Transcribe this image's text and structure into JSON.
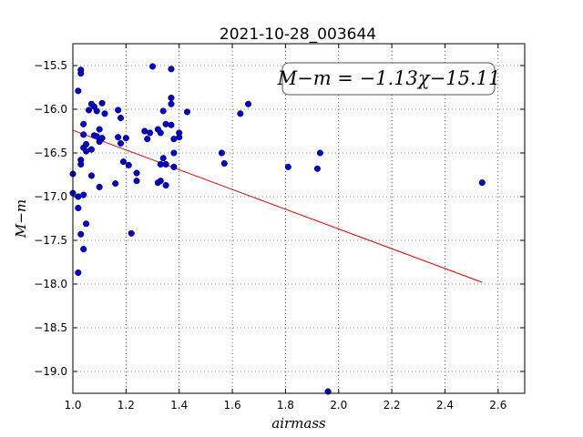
{
  "chart_data": {
    "type": "scatter",
    "title": "2021-10-28_003644",
    "xlabel": "airmass",
    "ylabel": "M−m",
    "xlim": [
      1.0,
      2.7
    ],
    "ylim": [
      -19.25,
      -15.25
    ],
    "y_inverted": true,
    "grid": true,
    "x_ticks": [
      "1.0",
      "1.2",
      "1.4",
      "1.6",
      "1.8",
      "2.0",
      "2.2",
      "2.4",
      "2.6"
    ],
    "y_ticks": [
      "−15.5",
      "−16.0",
      "−16.5",
      "−17.0",
      "−17.5",
      "−18.0",
      "−18.5",
      "−19.0"
    ],
    "annotation": "M−m = −1.13χ−15.11",
    "point_color": "#0000cc",
    "fit_color": "#dd0000",
    "fit_line": {
      "slope": -1.13,
      "intercept": -15.11,
      "x_range": [
        1.0,
        2.54
      ]
    },
    "points": [
      [
        1.0,
        -16.74
      ],
      [
        1.0,
        -16.96
      ],
      [
        1.02,
        -17.0
      ],
      [
        1.02,
        -15.79
      ],
      [
        1.02,
        -17.13
      ],
      [
        1.02,
        -17.87
      ],
      [
        1.03,
        -15.59
      ],
      [
        1.03,
        -15.55
      ],
      [
        1.03,
        -16.58
      ],
      [
        1.03,
        -16.63
      ],
      [
        1.03,
        -17.43
      ],
      [
        1.04,
        -16.29
      ],
      [
        1.04,
        -16.17
      ],
      [
        1.04,
        -16.44
      ],
      [
        1.04,
        -17.6
      ],
      [
        1.04,
        -16.98
      ],
      [
        1.05,
        -17.31
      ],
      [
        1.05,
        -16.4
      ],
      [
        1.05,
        -16.48
      ],
      [
        1.06,
        -16.01
      ],
      [
        1.07,
        -15.94
      ],
      [
        1.07,
        -16.46
      ],
      [
        1.07,
        -16.76
      ],
      [
        1.08,
        -16.3
      ],
      [
        1.08,
        -15.97
      ],
      [
        1.09,
        -16.02
      ],
      [
        1.09,
        -16.31
      ],
      [
        1.1,
        -16.89
      ],
      [
        1.1,
        -16.23
      ],
      [
        1.1,
        -16.37
      ],
      [
        1.11,
        -15.93
      ],
      [
        1.11,
        -16.33
      ],
      [
        1.12,
        -16.05
      ],
      [
        1.16,
        -16.85
      ],
      [
        1.17,
        -16.01
      ],
      [
        1.17,
        -16.32
      ],
      [
        1.18,
        -16.39
      ],
      [
        1.18,
        -16.1
      ],
      [
        1.19,
        -16.6
      ],
      [
        1.2,
        -16.33
      ],
      [
        1.21,
        -16.64
      ],
      [
        1.22,
        -17.42
      ],
      [
        1.24,
        -16.73
      ],
      [
        1.24,
        -16.82
      ],
      [
        1.27,
        -16.25
      ],
      [
        1.28,
        -16.34
      ],
      [
        1.29,
        -16.27
      ],
      [
        1.3,
        -15.51
      ],
      [
        1.32,
        -16.84
      ],
      [
        1.32,
        -16.23
      ],
      [
        1.33,
        -16.27
      ],
      [
        1.33,
        -16.82
      ],
      [
        1.33,
        -16.63
      ],
      [
        1.34,
        -16.02
      ],
      [
        1.34,
        -16.56
      ],
      [
        1.35,
        -16.17
      ],
      [
        1.35,
        -16.87
      ],
      [
        1.35,
        -16.63
      ],
      [
        1.37,
        -15.54
      ],
      [
        1.37,
        -15.87
      ],
      [
        1.37,
        -15.94
      ],
      [
        1.37,
        -16.18
      ],
      [
        1.38,
        -16.5
      ],
      [
        1.38,
        -16.66
      ],
      [
        1.38,
        -16.34
      ],
      [
        1.4,
        -16.32
      ],
      [
        1.4,
        -16.27
      ],
      [
        1.43,
        -16.03
      ],
      [
        1.56,
        -16.5
      ],
      [
        1.57,
        -16.62
      ],
      [
        1.63,
        -16.05
      ],
      [
        1.66,
        -15.94
      ],
      [
        1.81,
        -16.66
      ],
      [
        1.92,
        -16.68
      ],
      [
        1.93,
        -16.5
      ],
      [
        1.96,
        -19.23
      ],
      [
        2.54,
        -16.84
      ]
    ]
  }
}
